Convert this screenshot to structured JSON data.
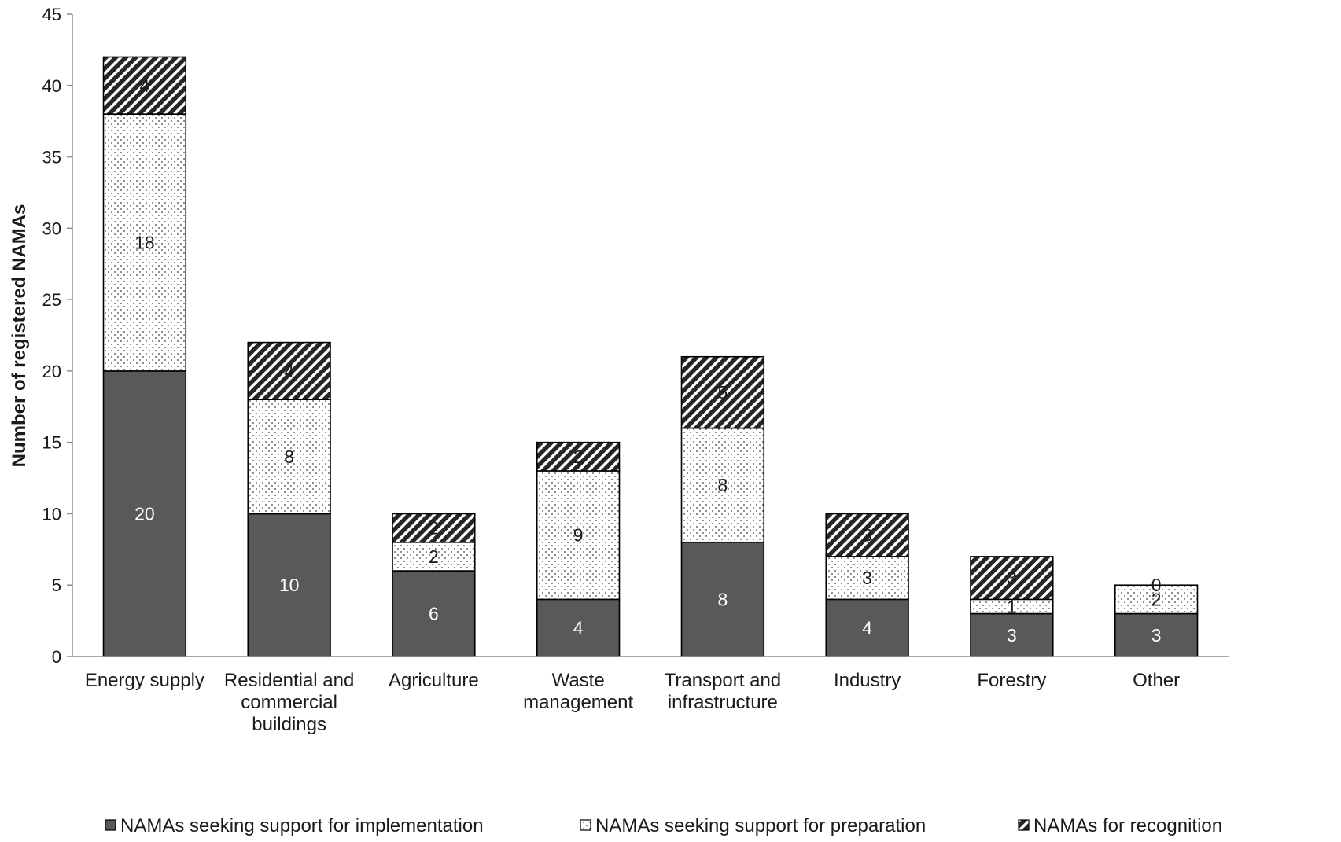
{
  "chart_data": {
    "type": "bar",
    "stacked": true,
    "title": "",
    "xlabel": "",
    "ylabel": "Number of registered NAMAs",
    "ylim": [
      0,
      45
    ],
    "yticks": [
      0,
      5,
      10,
      15,
      20,
      25,
      30,
      35,
      40,
      45
    ],
    "grid": false,
    "legend_position": "bottom",
    "categories": [
      [
        "Energy supply"
      ],
      [
        "Residential and",
        "commercial",
        "buildings"
      ],
      [
        "Agriculture"
      ],
      [
        "Waste",
        "management"
      ],
      [
        "Transport and",
        "infrastructure"
      ],
      [
        "Industry"
      ],
      [
        "Forestry"
      ],
      [
        "Other"
      ]
    ],
    "series": [
      {
        "name": "NAMAs seeking support for implementation",
        "pattern": "solid",
        "color": "#595959",
        "label_color": "#ffffff",
        "values": [
          20,
          10,
          6,
          4,
          8,
          4,
          3,
          3
        ]
      },
      {
        "name": "NAMAs seeking support for preparation",
        "pattern": "dots",
        "color": "#ffffff",
        "label_color": "#1a1a1a",
        "values": [
          18,
          8,
          2,
          9,
          8,
          3,
          1,
          2
        ]
      },
      {
        "name": "NAMAs for recognition",
        "pattern": "hatch",
        "color": "#262626",
        "label_color": "#1a1a1a",
        "values": [
          4,
          4,
          2,
          2,
          5,
          3,
          3,
          0
        ]
      }
    ]
  }
}
